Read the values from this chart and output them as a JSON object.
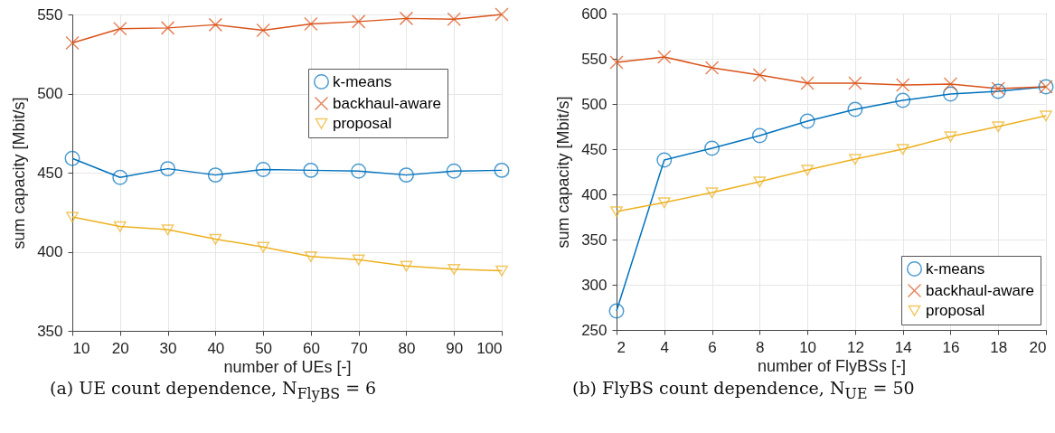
{
  "chart_data": [
    {
      "type": "line",
      "title": "(a) UE count dependence, N$_{FlyBS}$ = 6",
      "xlabel": "number of UEs [-]",
      "ylabel": "sum capacity [Mbit/s]",
      "x": [
        10,
        20,
        30,
        40,
        50,
        60,
        70,
        80,
        90,
        100
      ],
      "series": [
        {
          "name": "k-means",
          "color": "#0072bd",
          "marker": "circle",
          "values": [
            459,
            447,
            452.5,
            448.5,
            452,
            451.5,
            451,
            448.5,
            451,
            451.5
          ]
        },
        {
          "name": "backhaul-aware",
          "color": "#d95319",
          "marker": "cross",
          "values": [
            532,
            541,
            541.5,
            543.5,
            540,
            544,
            545.5,
            547.5,
            547,
            550
          ]
        },
        {
          "name": "proposal",
          "color": "#edb120",
          "marker": "triangle",
          "values": [
            422,
            416,
            414,
            408,
            403,
            397,
            395,
            391,
            389,
            388
          ]
        }
      ],
      "xlim": [
        10,
        100
      ],
      "xticks": [
        10,
        20,
        30,
        40,
        50,
        60,
        70,
        80,
        90,
        100
      ],
      "ylim": [
        350,
        550
      ],
      "yticks": [
        350,
        400,
        450,
        500,
        550
      ],
      "grid": true,
      "legend": "top right"
    },
    {
      "type": "line",
      "title": "(b) FlyBS count dependence, N$_{UE}$ = 50",
      "xlabel": "number of FlyBSs [-]",
      "ylabel": "sum capacity [Mbit/s]",
      "x": [
        2,
        4,
        6,
        8,
        10,
        12,
        14,
        16,
        18,
        20
      ],
      "series": [
        {
          "name": "k-means",
          "color": "#0072bd",
          "marker": "circle",
          "values": [
            271,
            438,
            451,
            465,
            481,
            494,
            504,
            511,
            514,
            519
          ]
        },
        {
          "name": "backhaul-aware",
          "color": "#d95319",
          "marker": "cross",
          "values": [
            546,
            552,
            540,
            532,
            523,
            523,
            521,
            522,
            517,
            519
          ]
        },
        {
          "name": "proposal",
          "color": "#edb120",
          "marker": "triangle",
          "values": [
            381,
            391,
            402,
            414,
            427,
            439,
            450,
            464,
            475,
            487
          ]
        }
      ],
      "xlim": [
        2,
        20
      ],
      "xticks": [
        2,
        4,
        6,
        8,
        10,
        12,
        14,
        16,
        18,
        20
      ],
      "ylim": [
        250,
        600
      ],
      "yticks": [
        250,
        300,
        350,
        400,
        450,
        500,
        550,
        600
      ],
      "grid": true,
      "legend": "bottom right"
    }
  ]
}
